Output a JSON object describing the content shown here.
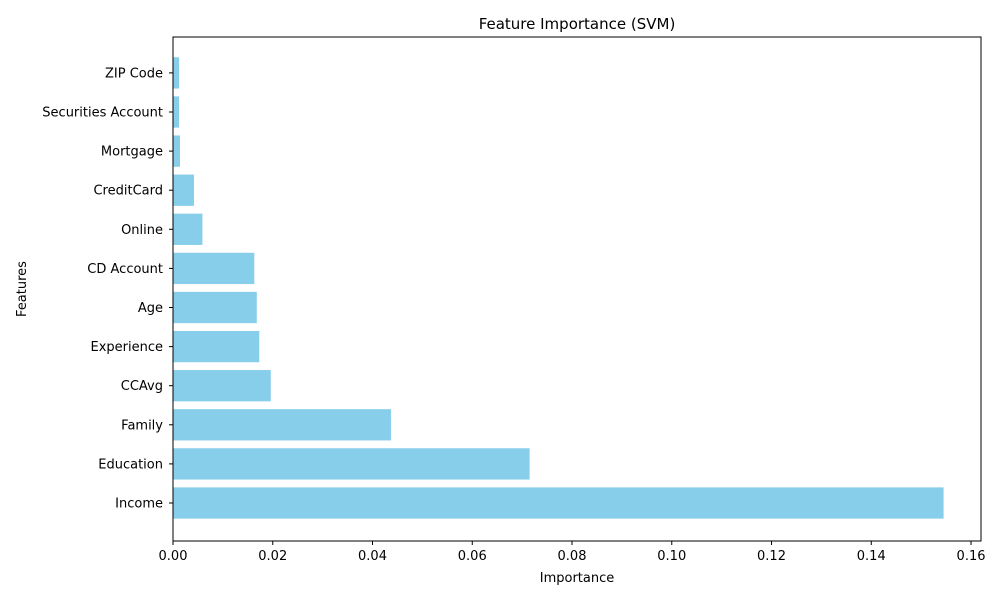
{
  "chart_data": {
    "type": "bar",
    "orientation": "horizontal",
    "title": "Feature Importance (SVM)",
    "xlabel": "Importance",
    "ylabel": "Features",
    "categories": [
      "Income",
      "Education",
      "Family",
      "CCAvg",
      "Experience",
      "Age",
      "CD Account",
      "Online",
      "CreditCard",
      "Mortgage",
      "Securities Account",
      "ZIP Code"
    ],
    "values": [
      0.1545,
      0.0715,
      0.0437,
      0.0196,
      0.0173,
      0.0168,
      0.0163,
      0.0059,
      0.0042,
      0.0014,
      0.0012,
      0.0012
    ],
    "xlim": [
      0,
      0.162
    ],
    "xticks": [
      0.0,
      0.02,
      0.04,
      0.06,
      0.08,
      0.1,
      0.12,
      0.14,
      0.16
    ],
    "xtick_labels": [
      "0.00",
      "0.02",
      "0.04",
      "0.06",
      "0.08",
      "0.10",
      "0.12",
      "0.14",
      "0.16"
    ],
    "bar_color": "#87ceeb",
    "grid": false
  }
}
